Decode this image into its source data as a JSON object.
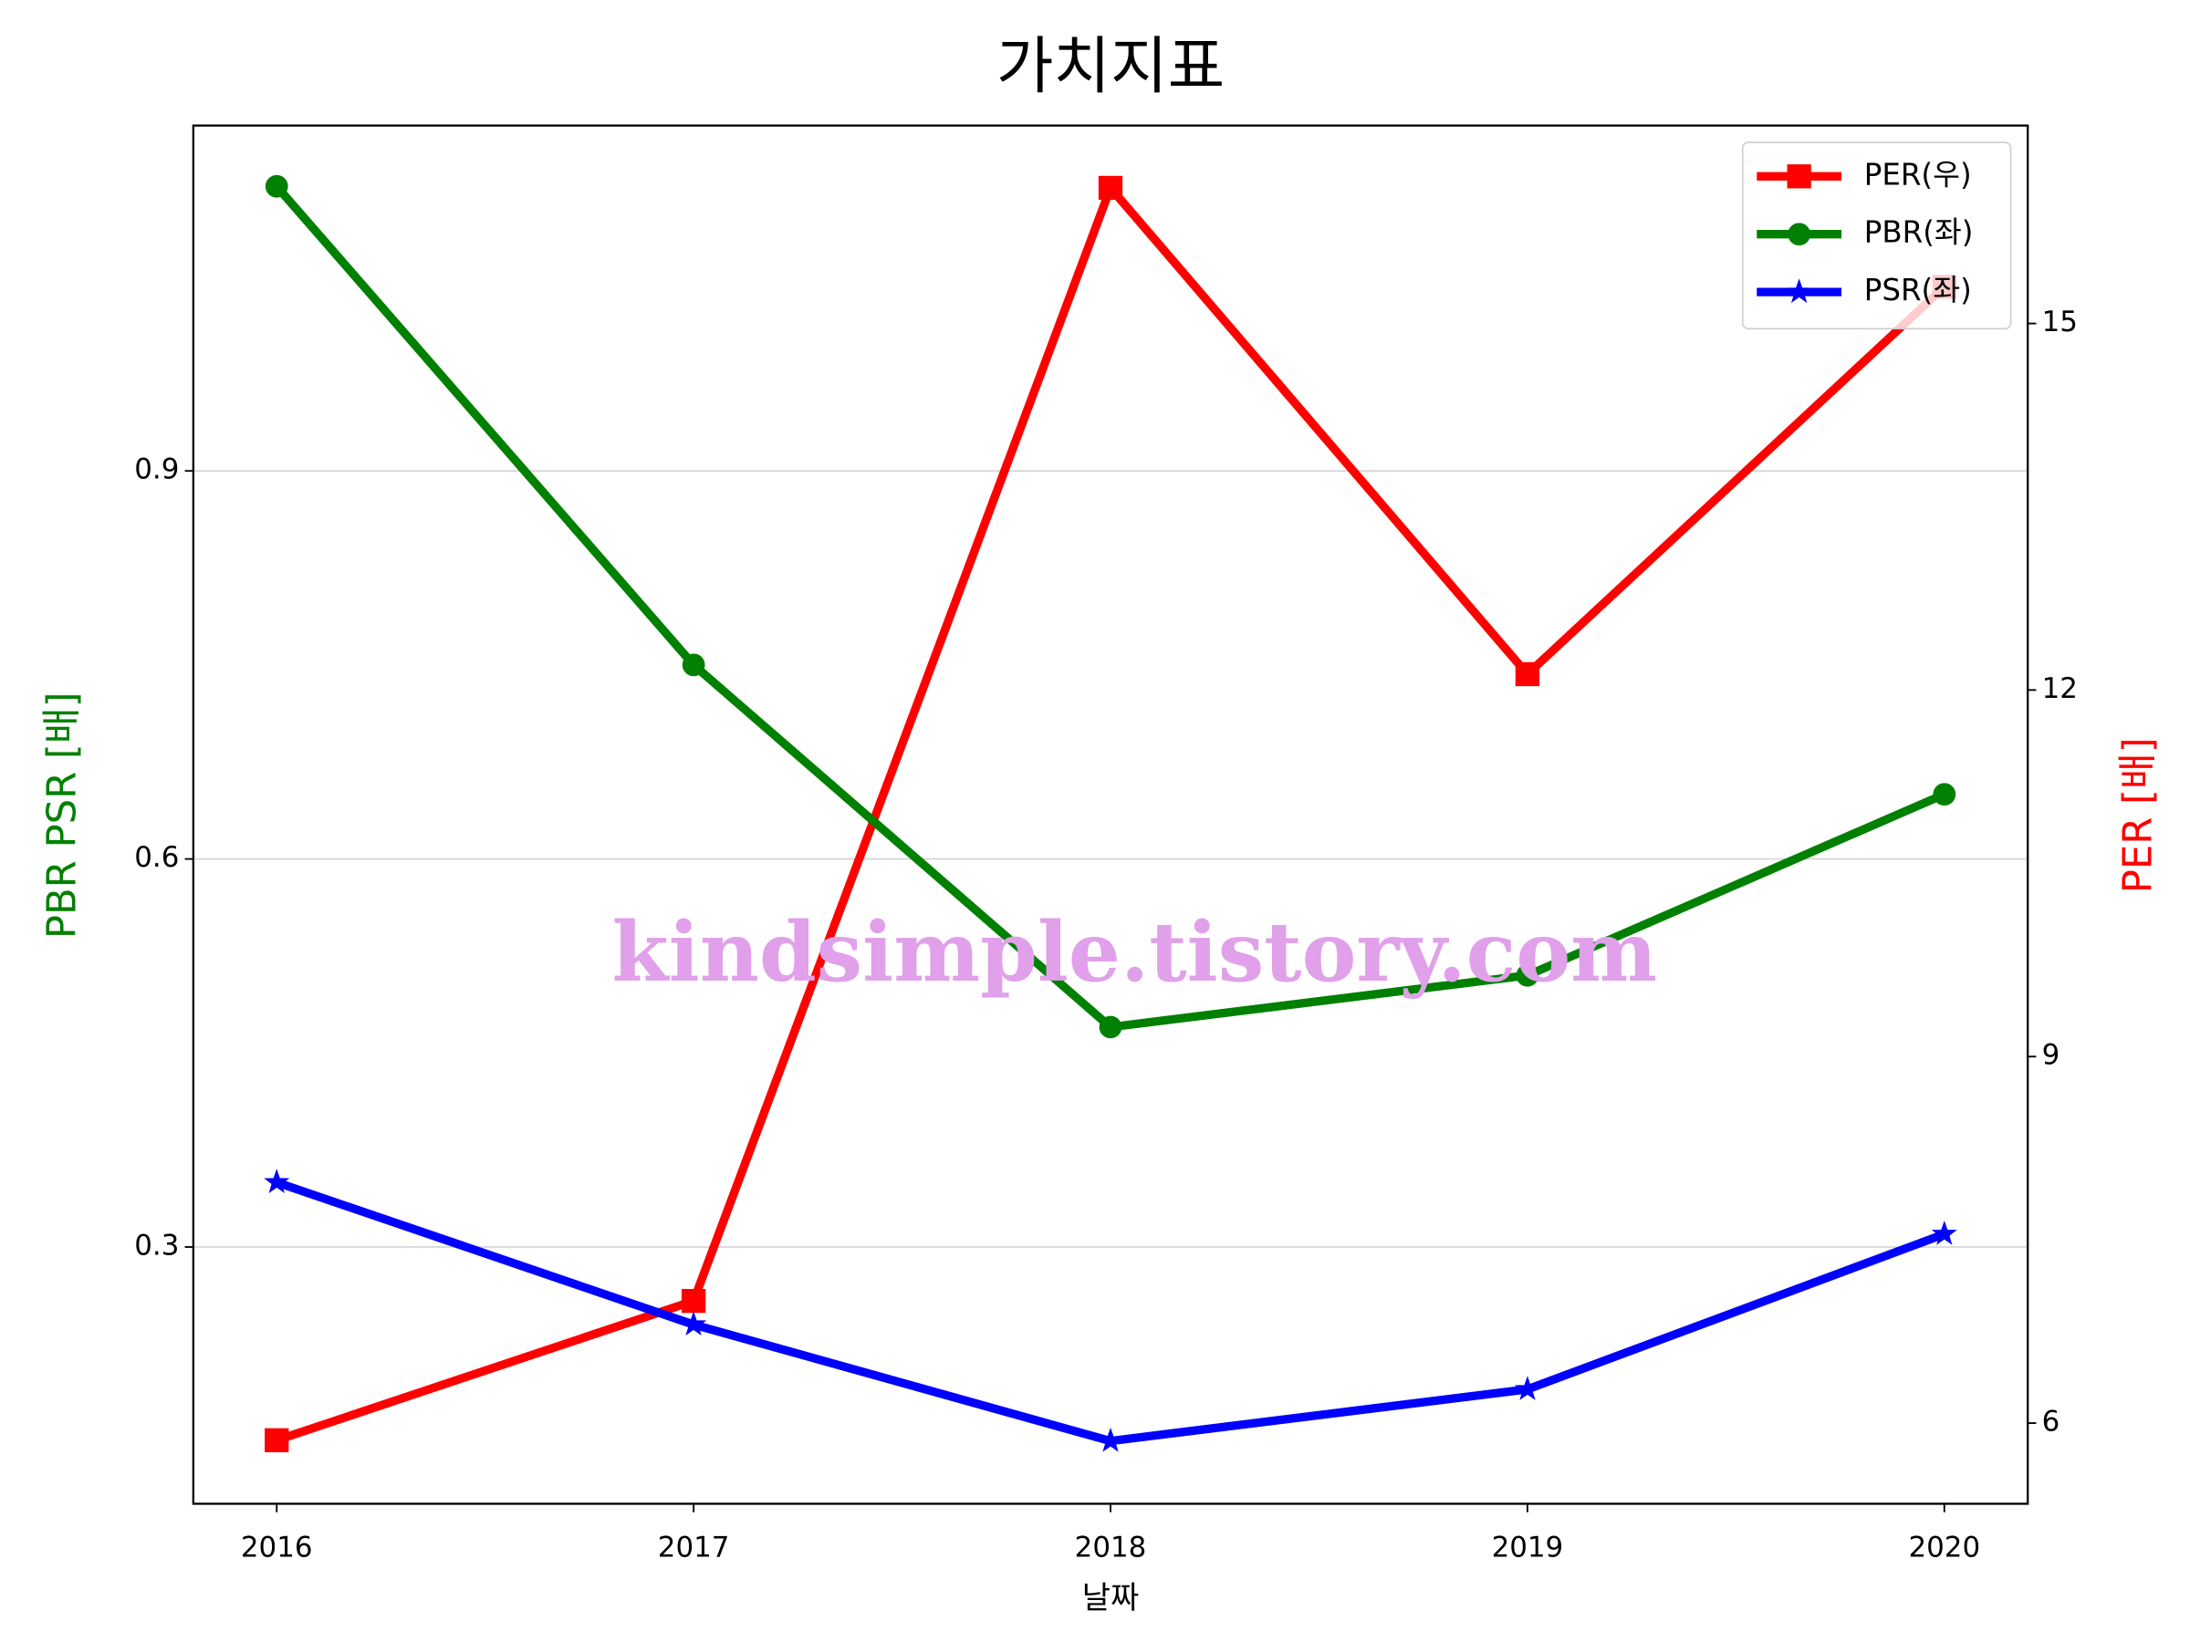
{
  "chart_data": {
    "type": "line",
    "title": "가치지표",
    "xlabel": "날짜",
    "ylabel": "PBR PSR [배]",
    "ylabel_color": "green",
    "y2label": "PER [배]",
    "y2label_color": "red",
    "watermark": "kindsimple.tistory.com",
    "x": [
      2016,
      2017,
      2018,
      2019,
      2020
    ],
    "xlim": [
      2015.8,
      2020.2
    ],
    "xticks": [
      2016,
      2017,
      2018,
      2019,
      2020
    ],
    "ylim": [
      0.1015,
      1.167
    ],
    "yticks": [
      0.3,
      0.6,
      0.9
    ],
    "y2lim": [
      5.34,
      16.62
    ],
    "y2ticks": [
      6,
      9,
      12,
      15
    ],
    "grid": true,
    "legend": "upper right",
    "series": [
      {
        "name": "PER(우)",
        "color": "#ff0000",
        "marker": "square",
        "axis": "y2",
        "values": [
          5.86,
          7.0,
          16.11,
          12.13,
          15.3
        ]
      },
      {
        "name": "PBR(좌)",
        "color": "#008000",
        "marker": "circle",
        "values": [
          1.12,
          0.75,
          0.47,
          0.51,
          0.65
        ]
      },
      {
        "name": "PSR(좌)",
        "color": "#0000ff",
        "marker": "star",
        "values": [
          0.35,
          0.24,
          0.15,
          0.19,
          0.31
        ]
      }
    ]
  }
}
